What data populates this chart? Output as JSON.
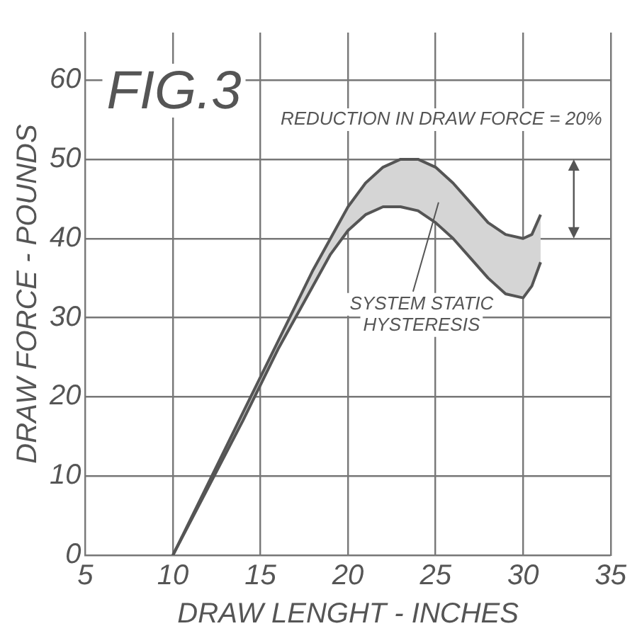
{
  "chart_data": {
    "type": "line",
    "title": "FIG.3",
    "xlabel": "DRAW LENGHT - INCHES",
    "ylabel": "DRAW FORCE - POUNDS",
    "xlim": [
      5,
      35
    ],
    "xticks": [
      5,
      10,
      15,
      20,
      25,
      30,
      35
    ],
    "ylim": [
      0,
      66
    ],
    "yticks": [
      0,
      10,
      20,
      30,
      40,
      50,
      60
    ],
    "grid": true,
    "legend": false,
    "marker": "none",
    "line_style": "solid",
    "series": [
      {
        "color": "#555555",
        "x": [
          10,
          12,
          14,
          16,
          17,
          18,
          19,
          20,
          21,
          22,
          23,
          24,
          25,
          26,
          27,
          28,
          29,
          30,
          30.5,
          31
        ],
        "values": [
          0,
          9,
          18,
          27,
          31.5,
          36,
          40,
          44,
          47,
          49,
          50,
          50,
          49,
          47,
          44.5,
          42,
          40.5,
          40,
          40.5,
          43
        ]
      },
      {
        "color": "#555555",
        "x": [
          10,
          12,
          14,
          16,
          17,
          18,
          19,
          20,
          21,
          22,
          23,
          24,
          25,
          26,
          27,
          28,
          29,
          30,
          30.5,
          31
        ],
        "values": [
          0,
          8.5,
          17,
          26,
          30,
          34,
          38,
          41,
          43,
          44,
          44,
          43.5,
          42,
          40,
          37.5,
          35,
          33,
          32.5,
          34,
          37
        ]
      }
    ],
    "annotations": [
      "REDUCTION IN DRAW FORCE = 20%",
      "SYSTEM STATIC HYSTERESIS"
    ]
  }
}
